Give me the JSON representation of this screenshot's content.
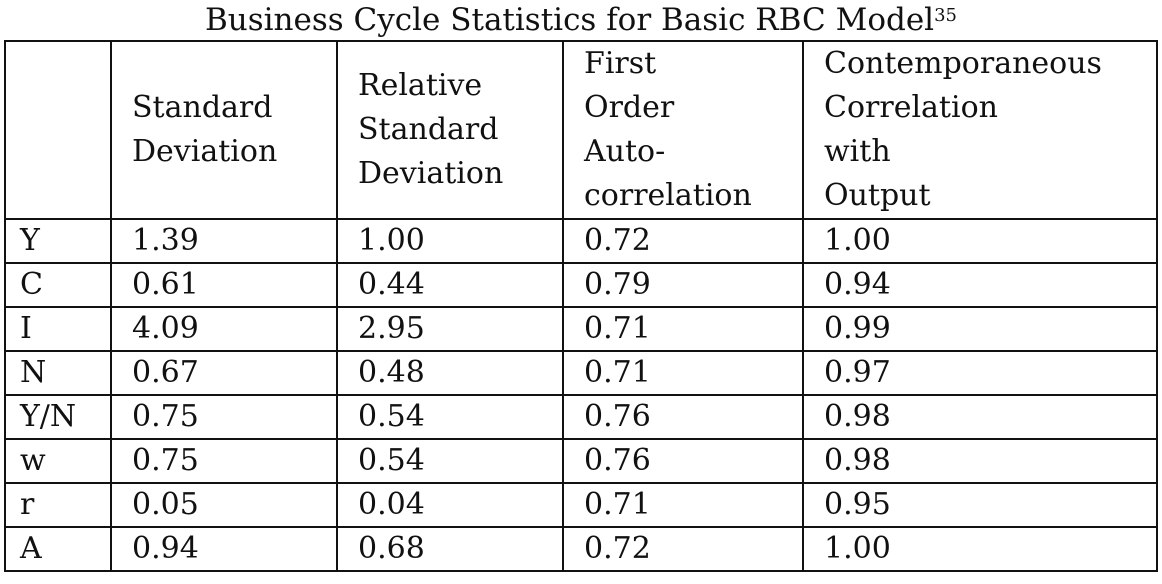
{
  "caption": {
    "text": "Business Cycle Statistics for Basic RBC Model",
    "footnote": "35"
  },
  "table": {
    "header": [
      {
        "lines": [
          ""
        ]
      },
      {
        "lines": [
          "Standard",
          "Deviation"
        ]
      },
      {
        "lines": [
          "Relative",
          "Standard",
          "Deviation"
        ]
      },
      {
        "lines": [
          "First",
          "Order",
          "Auto-",
          "correlation"
        ]
      },
      {
        "lines": [
          "Contemporaneous",
          "Correlation",
          "with",
          "Output"
        ]
      }
    ],
    "rows": [
      {
        "label": "Y",
        "values": [
          "1.39",
          "1.00",
          "0.72",
          "1.00"
        ]
      },
      {
        "label": "C",
        "values": [
          "0.61",
          "0.44",
          "0.79",
          "0.94"
        ]
      },
      {
        "label": "I",
        "values": [
          "4.09",
          "2.95",
          "0.71",
          "0.99"
        ]
      },
      {
        "label": "N",
        "values": [
          "0.67",
          "0.48",
          "0.71",
          "0.97"
        ]
      },
      {
        "label": "Y/N",
        "values": [
          "0.75",
          "0.54",
          "0.76",
          "0.98"
        ]
      },
      {
        "label": "w",
        "values": [
          "0.75",
          "0.54",
          "0.76",
          "0.98"
        ]
      },
      {
        "label": "r",
        "values": [
          "0.05",
          "0.04",
          "0.71",
          "0.95"
        ]
      },
      {
        "label": "A",
        "values": [
          "0.94",
          "0.68",
          "0.72",
          "1.00"
        ]
      }
    ]
  }
}
